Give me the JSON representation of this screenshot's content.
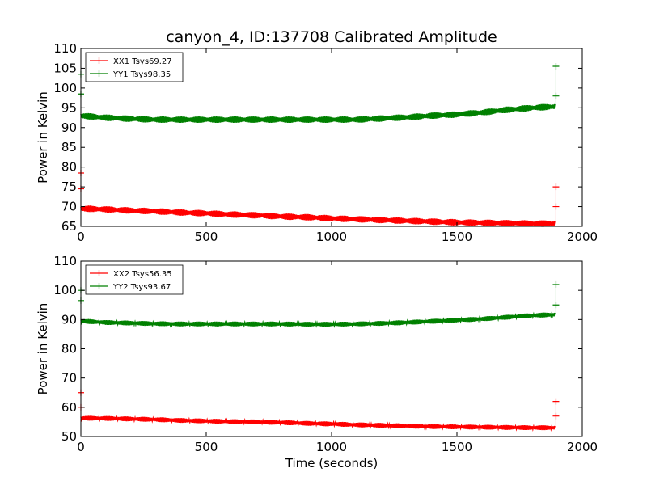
{
  "title": "canyon_4, ID:137708 Calibrated Amplitude",
  "xlabel": "Time (seconds)",
  "colors": {
    "xx": "#ff0000",
    "yy": "#008000",
    "axes": "#000000"
  },
  "chart_data": [
    {
      "type": "line",
      "ylabel": "Power in Kelvin",
      "xlim": [
        0,
        2000
      ],
      "ylim": [
        65,
        110
      ],
      "x_ticks": [
        0,
        500,
        1000,
        1500,
        2000
      ],
      "y_ticks": [
        65,
        70,
        75,
        80,
        85,
        90,
        95,
        100,
        105,
        110
      ],
      "legend_position": "upper-left",
      "series": [
        {
          "name": "XX1 Tsys69.27",
          "color": "#ff0000",
          "oscillation": 0.8,
          "x": [
            0,
            100,
            200,
            300,
            400,
            500,
            600,
            700,
            800,
            900,
            1000,
            1100,
            1200,
            1300,
            1400,
            1500,
            1600,
            1700,
            1800,
            1890
          ],
          "values": [
            69.5,
            69.3,
            69.0,
            68.8,
            68.5,
            68.3,
            68.0,
            67.8,
            67.5,
            67.3,
            67.0,
            66.8,
            66.6,
            66.4,
            66.2,
            66.0,
            65.9,
            65.8,
            65.7,
            65.7
          ],
          "spikes": [
            {
              "x": 0,
              "values": [
                78.5,
                74.5
              ]
            },
            {
              "x": 1895,
              "values": [
                75.0,
                70.0
              ]
            }
          ]
        },
        {
          "name": "YY1 Tsys98.35",
          "color": "#008000",
          "oscillation": 0.8,
          "x": [
            0,
            100,
            200,
            300,
            400,
            500,
            600,
            700,
            800,
            900,
            1000,
            1100,
            1200,
            1300,
            1400,
            1500,
            1600,
            1700,
            1800,
            1890
          ],
          "values": [
            93.0,
            92.5,
            92.2,
            92.0,
            92.0,
            92.0,
            92.0,
            92.0,
            92.0,
            92.0,
            92.0,
            92.0,
            92.3,
            92.6,
            93.0,
            93.3,
            93.8,
            94.5,
            95.0,
            95.3
          ],
          "spikes": [
            {
              "x": 0,
              "values": [
                103.5,
                98.5
              ]
            },
            {
              "x": 1895,
              "values": [
                105.5,
                98.0
              ]
            }
          ]
        }
      ]
    },
    {
      "type": "line",
      "ylabel": "Power in Kelvin",
      "xlabel": "Time (seconds)",
      "xlim": [
        0,
        2000
      ],
      "ylim": [
        50,
        110
      ],
      "x_ticks": [
        0,
        500,
        1000,
        1500,
        2000
      ],
      "y_ticks": [
        50,
        60,
        70,
        80,
        90,
        100,
        110
      ],
      "legend_position": "upper-left",
      "series": [
        {
          "name": "XX2 Tsys56.35",
          "color": "#ff0000",
          "oscillation": 0.8,
          "x": [
            0,
            100,
            200,
            300,
            400,
            500,
            600,
            700,
            800,
            900,
            1000,
            1100,
            1200,
            1300,
            1400,
            1500,
            1600,
            1700,
            1800,
            1890
          ],
          "values": [
            56.3,
            56.2,
            56.0,
            55.8,
            55.5,
            55.3,
            55.1,
            55.0,
            54.8,
            54.5,
            54.3,
            54.0,
            53.8,
            53.6,
            53.4,
            53.3,
            53.2,
            53.1,
            53.0,
            53.0
          ],
          "spikes": [
            {
              "x": 0,
              "values": [
                65.0,
                60.0
              ]
            },
            {
              "x": 1895,
              "values": [
                62.0,
                57.0
              ]
            }
          ]
        },
        {
          "name": "YY2 Tsys93.67",
          "color": "#008000",
          "oscillation": 0.8,
          "x": [
            0,
            100,
            200,
            300,
            400,
            500,
            600,
            700,
            800,
            900,
            1000,
            1100,
            1200,
            1300,
            1400,
            1500,
            1600,
            1700,
            1800,
            1890
          ],
          "values": [
            89.5,
            89.0,
            88.8,
            88.6,
            88.5,
            88.5,
            88.5,
            88.5,
            88.5,
            88.4,
            88.4,
            88.5,
            88.7,
            89.0,
            89.4,
            89.8,
            90.2,
            90.8,
            91.4,
            91.7
          ],
          "spikes": [
            {
              "x": 0,
              "values": [
                100.0,
                96.5
              ]
            },
            {
              "x": 1895,
              "values": [
                102.0,
                95.0
              ]
            }
          ]
        }
      ]
    }
  ]
}
